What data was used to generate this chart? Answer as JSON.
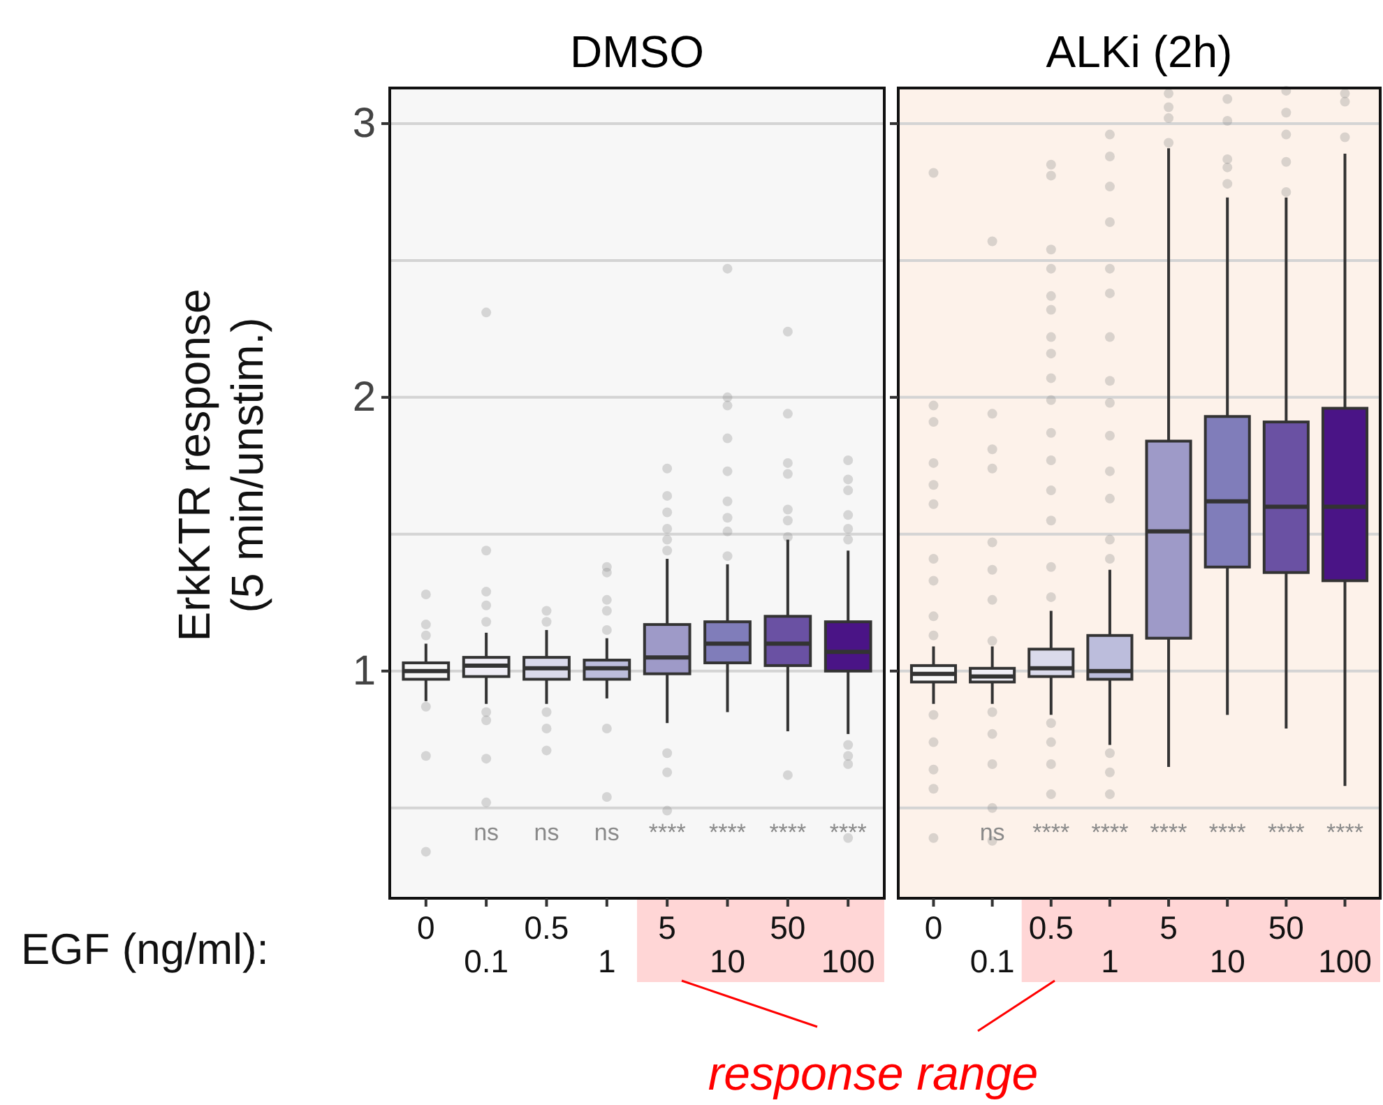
{
  "chart_data": [
    {
      "type": "box",
      "title": "DMSO",
      "ylabel": "ErkKTR response\n(5 min/unstim.)",
      "xlabel": "EGF (ng/ml):",
      "categories": [
        "0",
        "0.1",
        "0.5",
        "1",
        "5",
        "10",
        "50",
        "100"
      ],
      "colors": [
        "#f7f7f7",
        "#efedf5",
        "#dadaeb",
        "#bcbddc",
        "#9e9ac8",
        "#807dba",
        "#6a51a3",
        "#4a1486"
      ],
      "boxes": [
        {
          "low": 0.89,
          "q1": 0.97,
          "median": 1.0,
          "q3": 1.03,
          "high": 1.1,
          "outliers": [
            1.28,
            1.17,
            1.13,
            0.87,
            0.69,
            0.34
          ]
        },
        {
          "low": 0.88,
          "q1": 0.98,
          "median": 1.02,
          "q3": 1.05,
          "high": 1.14,
          "outliers": [
            2.31,
            1.44,
            1.29,
            1.24,
            1.18,
            0.85,
            0.82,
            0.68,
            0.52
          ]
        },
        {
          "low": 0.88,
          "q1": 0.97,
          "median": 1.01,
          "q3": 1.05,
          "high": 1.15,
          "outliers": [
            1.22,
            1.18,
            0.85,
            0.79,
            0.71
          ]
        },
        {
          "low": 0.9,
          "q1": 0.97,
          "median": 1.01,
          "q3": 1.04,
          "high": 1.12,
          "outliers": [
            1.38,
            1.36,
            1.26,
            1.22,
            1.15,
            0.79,
            0.54
          ]
        },
        {
          "low": 0.81,
          "q1": 0.99,
          "median": 1.05,
          "q3": 1.17,
          "high": 1.41,
          "outliers": [
            1.74,
            1.64,
            1.58,
            1.52,
            1.48,
            1.44,
            0.7,
            0.63,
            0.49
          ]
        },
        {
          "low": 0.85,
          "q1": 1.03,
          "median": 1.1,
          "q3": 1.18,
          "high": 1.39,
          "outliers": [
            2.47,
            2.0,
            1.97,
            1.85,
            1.73,
            1.62,
            1.56,
            1.51,
            1.42
          ]
        },
        {
          "low": 0.78,
          "q1": 1.02,
          "median": 1.1,
          "q3": 1.2,
          "high": 1.48,
          "outliers": [
            2.24,
            1.94,
            1.76,
            1.72,
            1.59,
            1.55,
            1.49,
            0.62
          ]
        },
        {
          "low": 0.77,
          "q1": 1.0,
          "median": 1.07,
          "q3": 1.18,
          "high": 1.44,
          "outliers": [
            1.77,
            1.7,
            1.66,
            1.57,
            1.52,
            1.48,
            0.73,
            0.69,
            0.66,
            0.39
          ]
        }
      ],
      "ylim": [
        0.17,
        3.13
      ],
      "yticks": [
        {
          "value": 0.5,
          "label": null
        },
        1,
        {
          "value": 1.5,
          "label": null
        },
        2,
        {
          "value": 2.5,
          "label": null
        },
        3
      ],
      "grid": "y",
      "annotations": [
        "ns",
        "ns",
        "ns",
        "****",
        "****",
        "****",
        "****",
        "response range"
      ]
    },
    {
      "type": "box",
      "title": "ALKi (2h)",
      "categories": [
        "0",
        "0.1",
        "0.5",
        "1",
        "5",
        "10",
        "50",
        "100"
      ],
      "colors": [
        "#f7f7f7",
        "#efedf5",
        "#dadaeb",
        "#bcbddc",
        "#9e9ac8",
        "#807dba",
        "#6a51a3",
        "#4a1486"
      ],
      "boxes": [
        {
          "low": 0.88,
          "q1": 0.96,
          "median": 0.99,
          "q3": 1.02,
          "high": 1.09,
          "outliers": [
            2.82,
            1.97,
            1.91,
            1.76,
            1.68,
            1.61,
            1.41,
            1.33,
            1.2,
            1.13,
            0.84,
            0.74,
            0.64,
            0.57,
            0.39
          ]
        },
        {
          "low": 0.88,
          "q1": 0.96,
          "median": 0.98,
          "q3": 1.01,
          "high": 1.09,
          "outliers": [
            2.57,
            1.94,
            1.81,
            1.74,
            1.47,
            1.37,
            1.26,
            1.11,
            0.85,
            0.77,
            0.66,
            0.5,
            0.38
          ]
        },
        {
          "low": 0.84,
          "q1": 0.98,
          "median": 1.01,
          "q3": 1.08,
          "high": 1.22,
          "outliers": [
            2.85,
            2.81,
            2.54,
            2.47,
            2.37,
            2.32,
            2.22,
            2.16,
            2.07,
            1.99,
            1.87,
            1.77,
            1.66,
            1.55,
            1.38,
            1.27,
            0.81,
            0.74,
            0.66,
            0.55
          ]
        },
        {
          "low": 0.73,
          "q1": 0.97,
          "median": 1.0,
          "q3": 1.13,
          "high": 1.37,
          "outliers": [
            2.96,
            2.88,
            2.77,
            2.64,
            2.47,
            2.38,
            2.22,
            2.06,
            1.98,
            1.86,
            1.73,
            1.63,
            1.48,
            1.41,
            0.7,
            0.63,
            0.55
          ]
        },
        {
          "low": 0.65,
          "q1": 1.12,
          "median": 1.51,
          "q3": 1.84,
          "high": 2.91,
          "outliers": [
            3.11,
            3.06,
            3.02,
            2.93
          ]
        },
        {
          "low": 0.84,
          "q1": 1.38,
          "median": 1.62,
          "q3": 1.93,
          "high": 2.73,
          "outliers": [
            3.09,
            3.01,
            2.87,
            2.84,
            2.78
          ]
        },
        {
          "low": 0.79,
          "q1": 1.36,
          "median": 1.6,
          "q3": 1.91,
          "high": 2.73,
          "outliers": [
            3.12,
            3.04,
            2.96,
            2.86,
            2.75
          ]
        },
        {
          "low": 0.58,
          "q1": 1.33,
          "median": 1.6,
          "q3": 1.96,
          "high": 2.89,
          "outliers": [
            3.11,
            3.08,
            2.95
          ]
        }
      ],
      "ylim": [
        0.17,
        3.13
      ],
      "yticks": [
        {
          "value": 0.5,
          "label": null
        },
        1,
        {
          "value": 1.5,
          "label": null
        },
        2,
        {
          "value": 2.5,
          "label": null
        },
        3
      ],
      "grid": "y",
      "tick_labels": "x",
      "annotations": [
        "ns",
        "****",
        "****",
        "****",
        "****",
        "****",
        "****"
      ]
    }
  ]
}
